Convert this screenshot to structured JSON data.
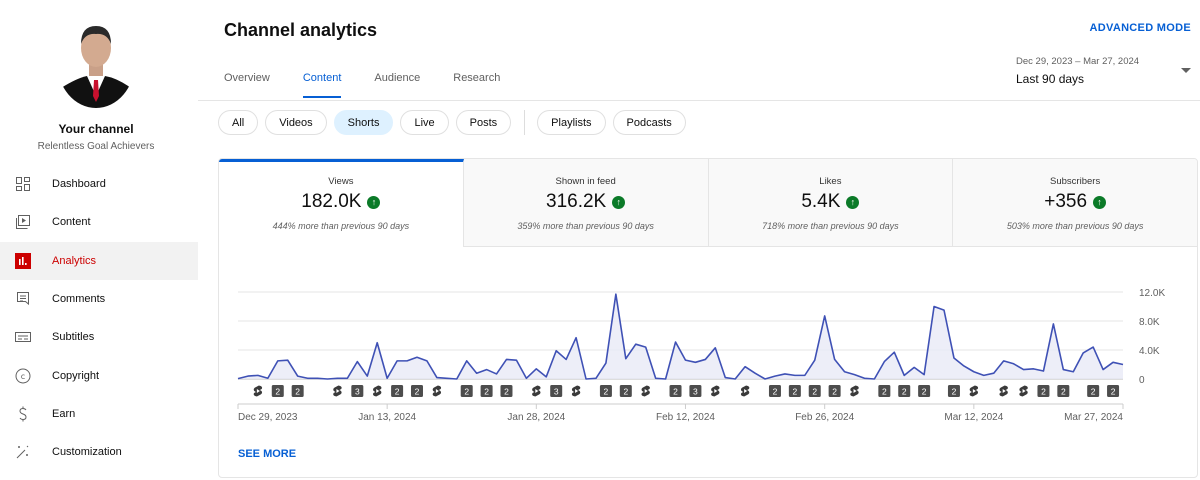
{
  "sidebar": {
    "channel_title": "Your channel",
    "channel_name": "Relentless Goal Achievers",
    "items": [
      {
        "label": "Dashboard",
        "icon": "dashboard-icon"
      },
      {
        "label": "Content",
        "icon": "content-icon"
      },
      {
        "label": "Analytics",
        "icon": "analytics-icon",
        "active": true
      },
      {
        "label": "Comments",
        "icon": "comments-icon"
      },
      {
        "label": "Subtitles",
        "icon": "subtitles-icon"
      },
      {
        "label": "Copyright",
        "icon": "copyright-icon"
      },
      {
        "label": "Earn",
        "icon": "earn-icon"
      },
      {
        "label": "Customization",
        "icon": "customization-icon"
      }
    ]
  },
  "header": {
    "title": "Channel analytics",
    "advanced_mode": "ADVANCED MODE",
    "tabs": [
      "Overview",
      "Content",
      "Audience",
      "Research"
    ],
    "active_tab": "Content",
    "date_range": "Dec 29, 2023 – Mar 27, 2024",
    "date_label": "Last 90 days"
  },
  "chips": [
    "All",
    "Videos",
    "Shorts",
    "Live",
    "Posts",
    "Playlists",
    "Podcasts"
  ],
  "active_chip": "Shorts",
  "metrics": [
    {
      "label": "Views",
      "value": "182.0K",
      "comparison": "444% more than previous 90 days"
    },
    {
      "label": "Shown in feed",
      "value": "316.2K",
      "comparison": "359% more than previous 90 days"
    },
    {
      "label": "Likes",
      "value": "5.4K",
      "comparison": "718% more than previous 90 days"
    },
    {
      "label": "Subscribers",
      "value": "+356",
      "comparison": "503% more than previous 90 days"
    }
  ],
  "see_more": "SEE MORE",
  "colors": {
    "accent": "#065fd4",
    "line": "#3f51b5",
    "fill": "#e8eaf6",
    "up": "#0b7a28",
    "active_nav": "#cc0000"
  },
  "chart_data": {
    "type": "area",
    "series": [
      {
        "name": "Views",
        "values": [
          0.05,
          0.4,
          0.5,
          0.1,
          2.5,
          2.6,
          0.4,
          0.1,
          0.1,
          0,
          0.1,
          0.1,
          2.4,
          0.4,
          5.0,
          0.1,
          2.5,
          2.5,
          3.0,
          2.5,
          0.2,
          0.1,
          0,
          2.5,
          0.8,
          1.3,
          0.7,
          2.7,
          2.6,
          0.1,
          1.4,
          0.3,
          3.9,
          2.7,
          5.7,
          0,
          0.1,
          2.2,
          11.7,
          2.8,
          4.8,
          4.4,
          0.1,
          0,
          5.1,
          2.6,
          2.3,
          2.7,
          4.3,
          0.2,
          0,
          1.7,
          0.8,
          0,
          0.4,
          0.7,
          0.5,
          0.5,
          2.6,
          8.7,
          2.7,
          1.0,
          0.6,
          0.1,
          0,
          2.4,
          3.7,
          0.5,
          1.6,
          0.6,
          10.0,
          9.5,
          2.9,
          1.8,
          1.0,
          0.5,
          0.8,
          2.5,
          2.1,
          1.3,
          1.4,
          1.1,
          7.6,
          1.3,
          1.0,
          3.6,
          4.4,
          1.3,
          2.3,
          2.0
        ]
      }
    ],
    "unit": "thousands",
    "ylim": [
      0,
      12
    ],
    "yticks": [
      {
        "v": 0,
        "label": "0"
      },
      {
        "v": 4,
        "label": "4.0K"
      },
      {
        "v": 8,
        "label": "8.0K"
      },
      {
        "v": 12,
        "label": "12.0K"
      }
    ],
    "xticks": [
      {
        "day": 0,
        "label": "Dec 29, 2023"
      },
      {
        "day": 15,
        "label": "Jan 13, 2024"
      },
      {
        "day": 30,
        "label": "Jan 28, 2024"
      },
      {
        "day": 45,
        "label": "Feb 12, 2024"
      },
      {
        "day": 59,
        "label": "Feb 26, 2024"
      },
      {
        "day": 74,
        "label": "Mar 12, 2024"
      },
      {
        "day": 89,
        "label": "Mar 27, 2024"
      }
    ],
    "markers": [
      {
        "day": 2,
        "label": ""
      },
      {
        "day": 4,
        "label": "2"
      },
      {
        "day": 6,
        "label": "2"
      },
      {
        "day": 10,
        "label": ""
      },
      {
        "day": 12,
        "label": "3"
      },
      {
        "day": 14,
        "label": ""
      },
      {
        "day": 16,
        "label": "2"
      },
      {
        "day": 18,
        "label": "2"
      },
      {
        "day": 20,
        "label": ""
      },
      {
        "day": 23,
        "label": "2"
      },
      {
        "day": 25,
        "label": "2"
      },
      {
        "day": 27,
        "label": "2"
      },
      {
        "day": 30,
        "label": ""
      },
      {
        "day": 32,
        "label": "3"
      },
      {
        "day": 34,
        "label": ""
      },
      {
        "day": 37,
        "label": "2"
      },
      {
        "day": 39,
        "label": "2"
      },
      {
        "day": 41,
        "label": ""
      },
      {
        "day": 44,
        "label": "2"
      },
      {
        "day": 46,
        "label": "3"
      },
      {
        "day": 48,
        "label": ""
      },
      {
        "day": 51,
        "label": ""
      },
      {
        "day": 54,
        "label": "2"
      },
      {
        "day": 56,
        "label": "2"
      },
      {
        "day": 58,
        "label": "2"
      },
      {
        "day": 60,
        "label": "2"
      },
      {
        "day": 62,
        "label": ""
      },
      {
        "day": 65,
        "label": "2"
      },
      {
        "day": 67,
        "label": "2"
      },
      {
        "day": 69,
        "label": "2"
      },
      {
        "day": 72,
        "label": "2"
      },
      {
        "day": 74,
        "label": ""
      },
      {
        "day": 77,
        "label": ""
      },
      {
        "day": 79,
        "label": ""
      },
      {
        "day": 81,
        "label": "2"
      },
      {
        "day": 83,
        "label": "2"
      },
      {
        "day": 86,
        "label": "2"
      },
      {
        "day": 88,
        "label": "2"
      }
    ],
    "grid": true
  }
}
